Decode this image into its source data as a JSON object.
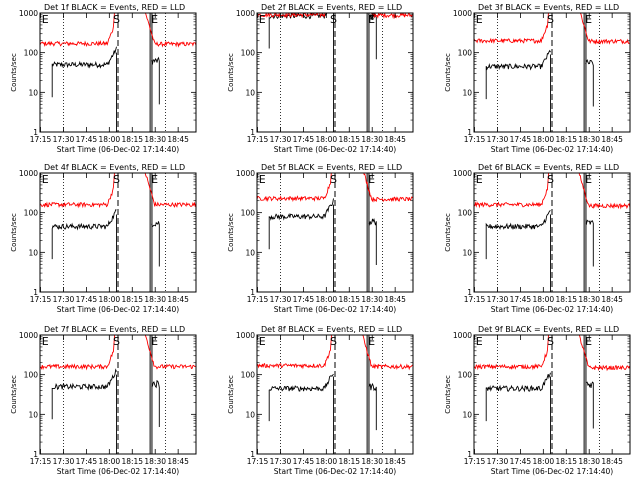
{
  "chart_data": {
    "type": "line",
    "xlabel_prefix": "Start Time (",
    "start_time": "06-Dec-02 17:14:40",
    "xlabel_suffix": ")",
    "ylabel": "Counts/sec",
    "y_scale": "log",
    "ylim": [
      1,
      1000
    ],
    "y_ticks": [
      {
        "value": 1,
        "label": "1"
      },
      {
        "value": 10,
        "label": "10"
      },
      {
        "value": 100,
        "label": "100"
      },
      {
        "value": 1000,
        "label": "1000"
      }
    ],
    "x_unit": "minutes after 17:14:40",
    "xlim": [
      0,
      102
    ],
    "x_ticks": [
      {
        "value": 0.33,
        "label": "17:15"
      },
      {
        "value": 15.33,
        "label": "17:30"
      },
      {
        "value": 30.33,
        "label": "17:45"
      },
      {
        "value": 45.33,
        "label": "18:00"
      },
      {
        "value": 60.33,
        "label": "18:15"
      },
      {
        "value": 75.33,
        "label": "18:30"
      },
      {
        "value": 90.33,
        "label": "18:45"
      }
    ],
    "series_colors": {
      "events": "#000000",
      "lld": "#ff0000"
    },
    "markers": [
      {
        "label": "E",
        "x": 0.5,
        "style": "none"
      },
      {
        "label": "S",
        "x": 51.0,
        "style": "dashed"
      },
      {
        "label": "E",
        "x": 72.0,
        "style": "solid"
      }
    ],
    "panels": [
      {
        "title": "Det 1f BLACK = Events, RED = LLD",
        "events": {
          "start": 8,
          "end": 50,
          "level": 50,
          "gap": [
            67,
            72
          ],
          "after": 62,
          "after_end": 78
        },
        "lld": {
          "level": 170,
          "before_end": 48,
          "after_level": 165
        }
      },
      {
        "title": "Det 2f BLACK = Events, RED = LLD",
        "events": {
          "start": 8,
          "end": 50,
          "level": 850,
          "gap": [
            67,
            72
          ],
          "after": 850,
          "after_end": 78
        },
        "lld": {
          "level": 900,
          "before_end": 48,
          "after_level": 880
        }
      },
      {
        "title": "Det 3f BLACK = Events, RED = LLD",
        "events": {
          "start": 8,
          "end": 50,
          "level": 45,
          "gap": [
            67,
            72
          ],
          "after": 55,
          "after_end": 78
        },
        "lld": {
          "level": 200,
          "before_end": 48,
          "after_level": 195
        }
      },
      {
        "title": "Det 4f BLACK = Events, RED = LLD",
        "events": {
          "start": 8,
          "end": 50,
          "level": 45,
          "gap": [
            67,
            72
          ],
          "after": 55,
          "after_end": 78
        },
        "lld": {
          "level": 160,
          "before_end": 48,
          "after_level": 160
        }
      },
      {
        "title": "Det 5f BLACK = Events, RED = LLD",
        "events": {
          "start": 8,
          "end": 50,
          "level": 80,
          "gap": [
            67,
            72
          ],
          "after": 60,
          "after_end": 78
        },
        "lld": {
          "level": 230,
          "before_end": 48,
          "after_level": 220
        }
      },
      {
        "title": "Det 6f BLACK = Events, RED = LLD",
        "events": {
          "start": 8,
          "end": 50,
          "level": 45,
          "gap": [
            67,
            72
          ],
          "after": 55,
          "after_end": 78
        },
        "lld": {
          "level": 160,
          "before_end": 48,
          "after_level": 150
        }
      },
      {
        "title": "Det 7f BLACK = Events, RED = LLD",
        "events": {
          "start": 8,
          "end": 50,
          "level": 50,
          "gap": [
            67,
            72
          ],
          "after": 60,
          "after_end": 78
        },
        "lld": {
          "level": 160,
          "before_end": 48,
          "after_level": 160
        }
      },
      {
        "title": "Det 8f BLACK = Events, RED = LLD",
        "events": {
          "start": 8,
          "end": 50,
          "level": 45,
          "gap": [
            67,
            72
          ],
          "after": 50,
          "after_end": 78
        },
        "lld": {
          "level": 170,
          "before_end": 48,
          "after_level": 160
        }
      },
      {
        "title": "Det 9f BLACK = Events, RED = LLD",
        "events": {
          "start": 8,
          "end": 50,
          "level": 45,
          "gap": [
            67,
            72
          ],
          "after": 55,
          "after_end": 78
        },
        "lld": {
          "level": 160,
          "before_end": 48,
          "after_level": 150
        }
      }
    ]
  }
}
